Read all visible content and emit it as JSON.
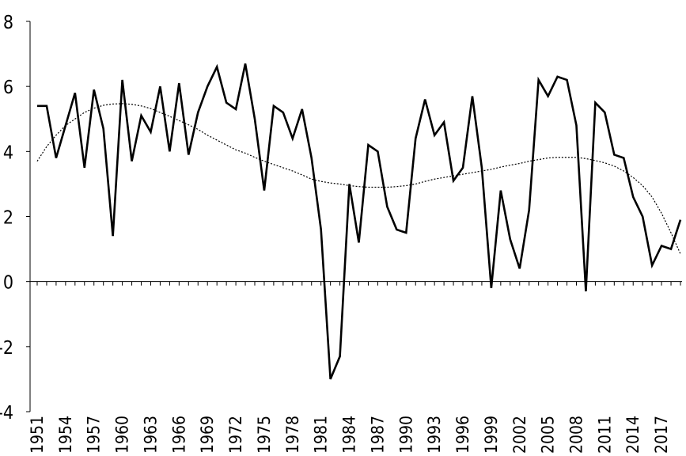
{
  "chart_data": {
    "type": "line",
    "title": "",
    "xlabel": "",
    "ylabel": "",
    "ylim": [
      -4,
      8
    ],
    "yticks": [
      -4,
      -2,
      0,
      2,
      4,
      6,
      8
    ],
    "ytick_labels": [
      "-4",
      "-2",
      "0",
      "2",
      "4",
      "6",
      "8"
    ],
    "xlim": [
      1951,
      2019
    ],
    "xtick_labels": [
      "1951",
      "1954",
      "1957",
      "1960",
      "1963",
      "1966",
      "1969",
      "1972",
      "1975",
      "1978",
      "1981",
      "1984",
      "1987",
      "1990",
      "1993",
      "1996",
      "1999",
      "2002",
      "2005",
      "2008",
      "2011",
      "2014",
      "2017"
    ],
    "grid": false,
    "legend": "none",
    "series": [
      {
        "style": "solid",
        "color": "#000000",
        "x": [
          1951,
          1952,
          1953,
          1954,
          1955,
          1956,
          1957,
          1958,
          1959,
          1960,
          1961,
          1962,
          1963,
          1964,
          1965,
          1966,
          1967,
          1968,
          1969,
          1970,
          1971,
          1972,
          1973,
          1974,
          1975,
          1976,
          1977,
          1978,
          1979,
          1980,
          1981,
          1982,
          1983,
          1984,
          1985,
          1986,
          1987,
          1988,
          1989,
          1990,
          1991,
          1992,
          1993,
          1994,
          1995,
          1996,
          1997,
          1998,
          1999,
          2000,
          2001,
          2002,
          2003,
          2004,
          2005,
          2006,
          2007,
          2008,
          2009,
          2010,
          2011,
          2012,
          2013,
          2014,
          2015,
          2016,
          2017,
          2018,
          2019
        ],
        "values": [
          5.4,
          5.4,
          3.8,
          4.8,
          5.8,
          3.5,
          5.9,
          4.7,
          1.4,
          6.2,
          3.7,
          5.1,
          4.6,
          6.0,
          4.0,
          6.1,
          3.9,
          5.2,
          6.0,
          6.6,
          5.5,
          5.3,
          6.7,
          5.0,
          2.8,
          5.4,
          5.2,
          4.4,
          5.3,
          3.8,
          1.6,
          -3.0,
          -2.3,
          3.0,
          1.2,
          4.2,
          4.0,
          2.3,
          1.6,
          1.5,
          4.4,
          5.6,
          4.5,
          4.9,
          3.1,
          3.5,
          5.7,
          3.5,
          -0.2,
          2.8,
          1.3,
          0.4,
          2.2,
          6.2,
          5.7,
          6.3,
          6.2,
          4.8,
          -0.3,
          5.5,
          5.2,
          3.9,
          3.8,
          2.6,
          2.0,
          0.5,
          1.1,
          1.0,
          1.9
        ]
      },
      {
        "style": "dotted",
        "color": "#000000",
        "x": [
          1951,
          1952,
          1953,
          1954,
          1955,
          1956,
          1957,
          1958,
          1959,
          1960,
          1961,
          1962,
          1963,
          1964,
          1965,
          1966,
          1967,
          1968,
          1969,
          1970,
          1971,
          1972,
          1973,
          1974,
          1975,
          1976,
          1977,
          1978,
          1979,
          1980,
          1981,
          1982,
          1983,
          1984,
          1985,
          1986,
          1987,
          1988,
          1989,
          1990,
          1991,
          1992,
          1993,
          1994,
          1995,
          1996,
          1997,
          1998,
          1999,
          2000,
          2001,
          2002,
          2003,
          2004,
          2005,
          2006,
          2007,
          2008,
          2009,
          2010,
          2011,
          2012,
          2013,
          2014,
          2015,
          2016,
          2017,
          2018,
          2019
        ],
        "values": [
          3.7,
          4.15,
          4.5,
          4.8,
          5.0,
          5.2,
          5.33,
          5.42,
          5.46,
          5.47,
          5.45,
          5.4,
          5.32,
          5.2,
          5.08,
          4.95,
          4.82,
          4.68,
          4.5,
          4.35,
          4.2,
          4.05,
          3.95,
          3.82,
          3.7,
          3.6,
          3.5,
          3.4,
          3.28,
          3.15,
          3.08,
          3.03,
          3.0,
          2.95,
          2.92,
          2.9,
          2.9,
          2.9,
          2.92,
          2.95,
          3.0,
          3.08,
          3.15,
          3.2,
          3.25,
          3.3,
          3.35,
          3.4,
          3.45,
          3.52,
          3.58,
          3.63,
          3.7,
          3.75,
          3.8,
          3.82,
          3.82,
          3.82,
          3.78,
          3.72,
          3.65,
          3.55,
          3.4,
          3.2,
          2.95,
          2.6,
          2.1,
          1.5,
          0.85
        ]
      }
    ]
  }
}
